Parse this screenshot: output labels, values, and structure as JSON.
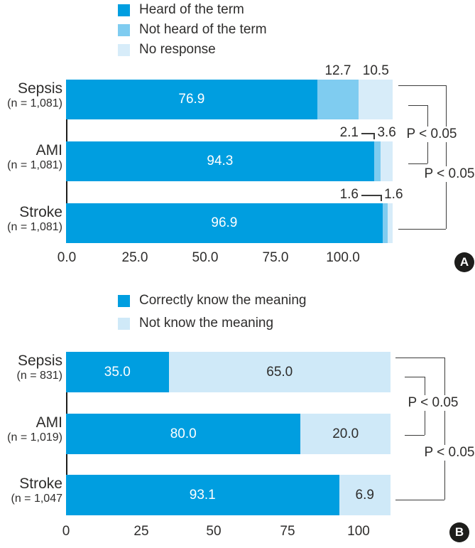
{
  "figure": {
    "panels": [
      {
        "badge": "A",
        "legend": [
          {
            "label": "Heard of the term",
            "color": "#009ee0"
          },
          {
            "label": "Not heard of the term",
            "color": "#7fccf0"
          },
          {
            "label": "No response",
            "color": "#d7ecf9"
          }
        ],
        "rows": [
          {
            "label": "Sepsis",
            "n": "(n = 1,081)",
            "values": [
              76.9,
              12.7,
              10.5
            ],
            "display": [
              "76.9",
              "12.7",
              "10.5"
            ]
          },
          {
            "label": "AMI",
            "n": "(n = 1,081)",
            "values": [
              94.3,
              2.1,
              3.6
            ],
            "display": [
              "94.3",
              "2.1",
              "3.6"
            ]
          },
          {
            "label": "Stroke",
            "n": "(n = 1,081)",
            "values": [
              96.9,
              1.6,
              1.6
            ],
            "display": [
              "96.9",
              "1.6",
              "1.6"
            ]
          }
        ],
        "x_ticks": [
          "0.0",
          "25.0",
          "50.0",
          "75.0",
          "100.0"
        ],
        "p_values": [
          {
            "label": "P < 0.05",
            "between": [
              "Sepsis",
              "AMI"
            ]
          },
          {
            "label": "P < 0.05",
            "between": [
              "Sepsis",
              "Stroke"
            ]
          }
        ]
      },
      {
        "badge": "B",
        "legend": [
          {
            "label": "Correctly know the meaning",
            "color": "#009ee0"
          },
          {
            "label": "Not know the meaning",
            "color": "#cfe9f8"
          }
        ],
        "rows": [
          {
            "label": "Sepsis",
            "n": "(n = 831)",
            "values": [
              35.0,
              65.0
            ],
            "display": [
              "35.0",
              "65.0"
            ]
          },
          {
            "label": "AMI",
            "n": "(n = 1,019)",
            "values": [
              80.0,
              20.0
            ],
            "display": [
              "80.0",
              "20.0"
            ]
          },
          {
            "label": "Stroke",
            "n": "(n = 1,047",
            "values": [
              93.1,
              6.9
            ],
            "display": [
              "93.1",
              "6.9"
            ]
          }
        ],
        "x_ticks": [
          "0",
          "25",
          "50",
          "75",
          "100"
        ],
        "p_values": [
          {
            "label": "P < 0.05",
            "between": [
              "Sepsis",
              "AMI"
            ]
          },
          {
            "label": "P < 0.05",
            "between": [
              "Sepsis",
              "Stroke"
            ]
          }
        ]
      }
    ]
  },
  "chart_data": [
    {
      "type": "bar",
      "orientation": "horizontal",
      "stacked": true,
      "panel_label": "A",
      "categories": [
        "Sepsis (n = 1,081)",
        "AMI (n = 1,081)",
        "Stroke (n = 1,081)"
      ],
      "series": [
        {
          "name": "Heard of the term",
          "values": [
            76.9,
            94.3,
            96.9
          ],
          "color": "#009ee0"
        },
        {
          "name": "Not heard of the term",
          "values": [
            12.7,
            2.1,
            1.6
          ],
          "color": "#7fccf0"
        },
        {
          "name": "No response",
          "values": [
            10.5,
            3.6,
            1.6
          ],
          "color": "#d7ecf9"
        }
      ],
      "xlim": [
        0,
        100
      ],
      "x_tick_labels": [
        "0.0",
        "25.0",
        "50.0",
        "75.0",
        "100.0"
      ],
      "legend_position": "top",
      "grid": false,
      "annotations": [
        {
          "label": "P < 0.05",
          "between": [
            "Sepsis",
            "AMI"
          ]
        },
        {
          "label": "P < 0.05",
          "between": [
            "Sepsis",
            "Stroke"
          ]
        }
      ]
    },
    {
      "type": "bar",
      "orientation": "horizontal",
      "stacked": true,
      "panel_label": "B",
      "categories": [
        "Sepsis (n = 831)",
        "AMI (n = 1,019)",
        "Stroke (n = 1,047)"
      ],
      "series": [
        {
          "name": "Correctly know the meaning",
          "values": [
            35.0,
            80.0,
            93.1
          ],
          "color": "#009ee0"
        },
        {
          "name": "Not know the meaning",
          "values": [
            65.0,
            20.0,
            6.9
          ],
          "color": "#cfe9f8"
        }
      ],
      "xlim": [
        0,
        100
      ],
      "x_tick_labels": [
        "0",
        "25",
        "50",
        "75",
        "100"
      ],
      "legend_position": "top",
      "grid": false,
      "annotations": [
        {
          "label": "P < 0.05",
          "between": [
            "Sepsis",
            "AMI"
          ]
        },
        {
          "label": "P < 0.05",
          "between": [
            "Sepsis",
            "Stroke"
          ]
        }
      ]
    }
  ]
}
